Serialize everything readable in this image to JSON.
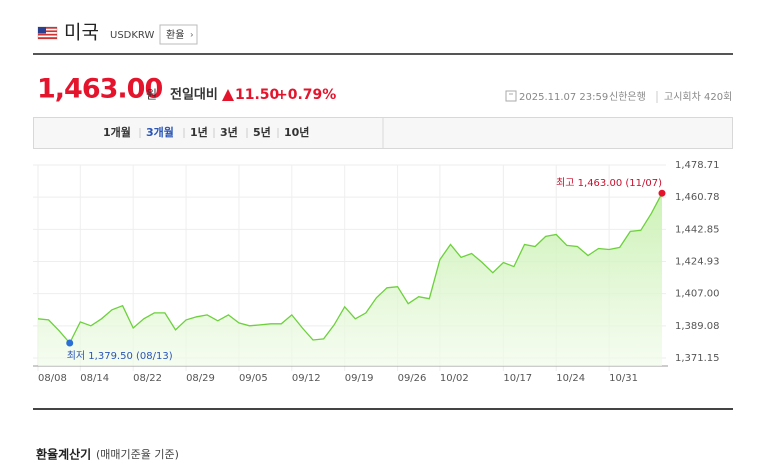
{
  "header": {
    "title": "미국",
    "code": "USDKRW",
    "button": "환율"
  },
  "price": {
    "value": "1,463.00",
    "unit": "원",
    "change_label": "전일대비",
    "change": "11.50",
    "change_pct": "+0.79%"
  },
  "info": {
    "datetime": "2025.11.07 23:59",
    "bank": "신한은행",
    "round": "고시회차 420회"
  },
  "tabs": [
    "1개월",
    "3개월",
    "1년",
    "3년",
    "5년",
    "10년"
  ],
  "active_tab": 1,
  "chart_data": {
    "type": "area",
    "color": "#6cd13b",
    "categories": [
      "08/08",
      null,
      null,
      null,
      "08/14",
      null,
      null,
      null,
      null,
      "08/22",
      null,
      null,
      null,
      null,
      "08/29",
      null,
      null,
      null,
      null,
      "09/05",
      null,
      null,
      null,
      null,
      "09/12",
      null,
      null,
      null,
      null,
      "09/19",
      null,
      null,
      null,
      null,
      "09/26",
      null,
      null,
      null,
      "10/02",
      null,
      null,
      null,
      null,
      null,
      "10/17",
      null,
      null,
      null,
      null,
      "10/24",
      null,
      null,
      null,
      null,
      "10/31",
      null,
      null,
      null,
      null,
      null
    ],
    "series": [
      {
        "name": "USDKRW",
        "values": [
          1393.0,
          1392.4,
          1386.3,
          1379.5,
          1391.3,
          1389.1,
          1393.0,
          1398.0,
          1400.3,
          1387.9,
          1393.0,
          1396.3,
          1396.3,
          1386.8,
          1392.4,
          1394.1,
          1395.2,
          1391.9,
          1395.2,
          1390.7,
          1389.1,
          1389.6,
          1390.2,
          1390.2,
          1395.2,
          1387.9,
          1381.2,
          1381.8,
          1389.6,
          1399.7,
          1393.0,
          1396.3,
          1404.7,
          1410.3,
          1410.9,
          1401.4,
          1405.3,
          1404.2,
          1426.0,
          1434.4,
          1427.2,
          1429.4,
          1424.4,
          1418.7,
          1424.4,
          1422.1,
          1434.4,
          1433.3,
          1438.9,
          1440.0,
          1433.9,
          1433.3,
          1428.3,
          1432.2,
          1431.6,
          1432.8,
          1441.7,
          1442.3,
          1451.8,
          1463.0
        ]
      }
    ],
    "ylim": [
      1366.7,
      1478.71
    ],
    "yticks": [
      {
        "value": 1371.15,
        "label": "1,371.15"
      },
      {
        "value": 1389.08,
        "label": "1,389.08"
      },
      {
        "value": 1407.0,
        "label": "1,407.00"
      },
      {
        "value": 1424.93,
        "label": "1,424.93"
      },
      {
        "value": 1442.85,
        "label": "1,442.85"
      },
      {
        "value": 1460.78,
        "label": "1,460.78"
      },
      {
        "value": 1478.71,
        "label": "1,478.71"
      }
    ],
    "grid": true,
    "max_label": "최고 1,463.00 (11/07)",
    "min_label": "최저 1,379.50 (08/13)"
  },
  "footer": {
    "title": "환율계산기",
    "note": "(매매기준율 기준)"
  }
}
